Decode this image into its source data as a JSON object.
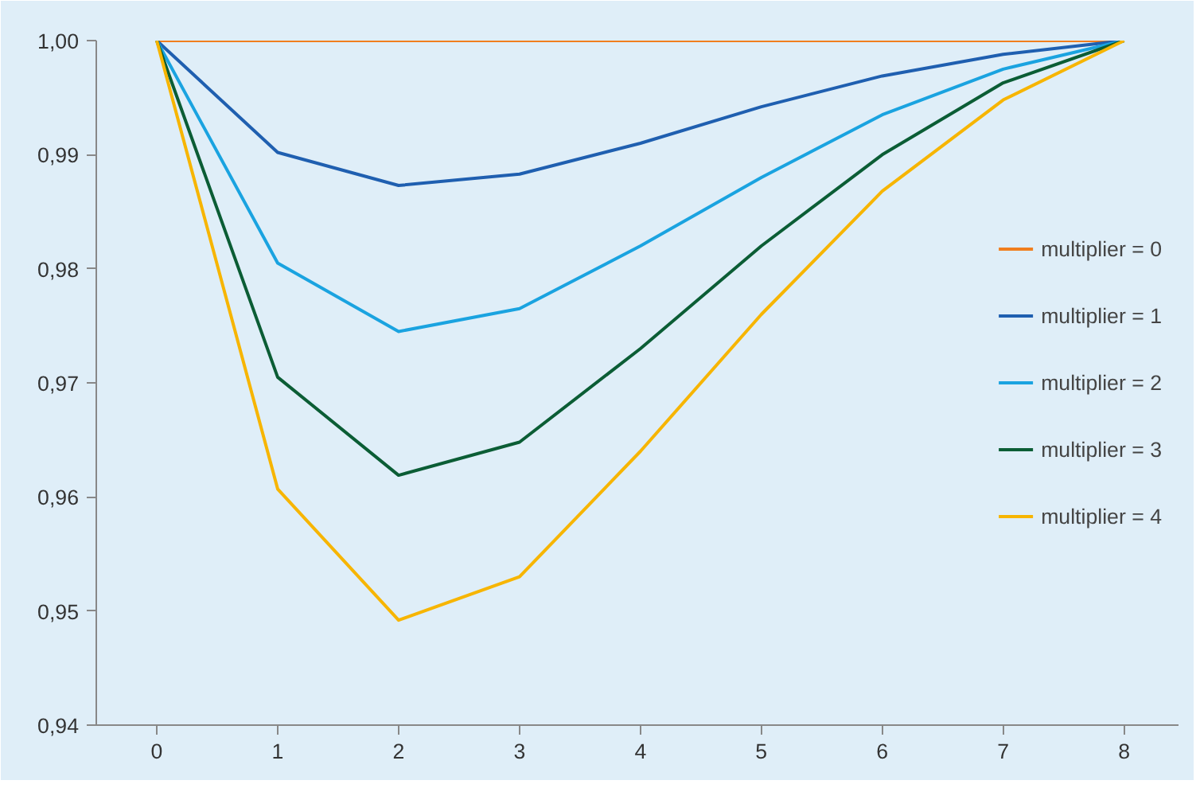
{
  "chart_data": {
    "type": "line",
    "categories": [
      "0",
      "1",
      "2",
      "3",
      "4",
      "5",
      "6",
      "7",
      "8"
    ],
    "ylim": [
      0.94,
      1.0
    ],
    "yticks": [
      {
        "value": 0.94,
        "label": "0,94"
      },
      {
        "value": 0.95,
        "label": "0,95"
      },
      {
        "value": 0.96,
        "label": "0,96"
      },
      {
        "value": 0.97,
        "label": "0,97"
      },
      {
        "value": 0.98,
        "label": "0,98"
      },
      {
        "value": 0.99,
        "label": "0,99"
      },
      {
        "value": 1.0,
        "label": "1,00"
      }
    ],
    "series": [
      {
        "name": "multiplier = 0",
        "color": "#f07e1e",
        "values": [
          1,
          1,
          1,
          1,
          1,
          1,
          1,
          1,
          1
        ]
      },
      {
        "name": "multiplier = 1",
        "color": "#1f5fb0",
        "values": [
          1,
          0.9902,
          0.9873,
          0.9883,
          0.991,
          0.9942,
          0.9969,
          0.9988,
          1
        ]
      },
      {
        "name": "multiplier = 2",
        "color": "#1aa3e0",
        "values": [
          1,
          0.9805,
          0.9745,
          0.9765,
          0.982,
          0.988,
          0.9935,
          0.9975,
          1
        ]
      },
      {
        "name": "multiplier = 3",
        "color": "#0b5d35",
        "values": [
          1,
          0.9705,
          0.9619,
          0.9648,
          0.973,
          0.982,
          0.99,
          0.9963,
          1
        ]
      },
      {
        "name": "multiplier = 4",
        "color": "#f7b500",
        "values": [
          1,
          0.9607,
          0.9492,
          0.953,
          0.964,
          0.976,
          0.9868,
          0.9948,
          1
        ]
      }
    ],
    "grid": false,
    "legend": "right",
    "marker": "none",
    "line_style": "solid"
  }
}
